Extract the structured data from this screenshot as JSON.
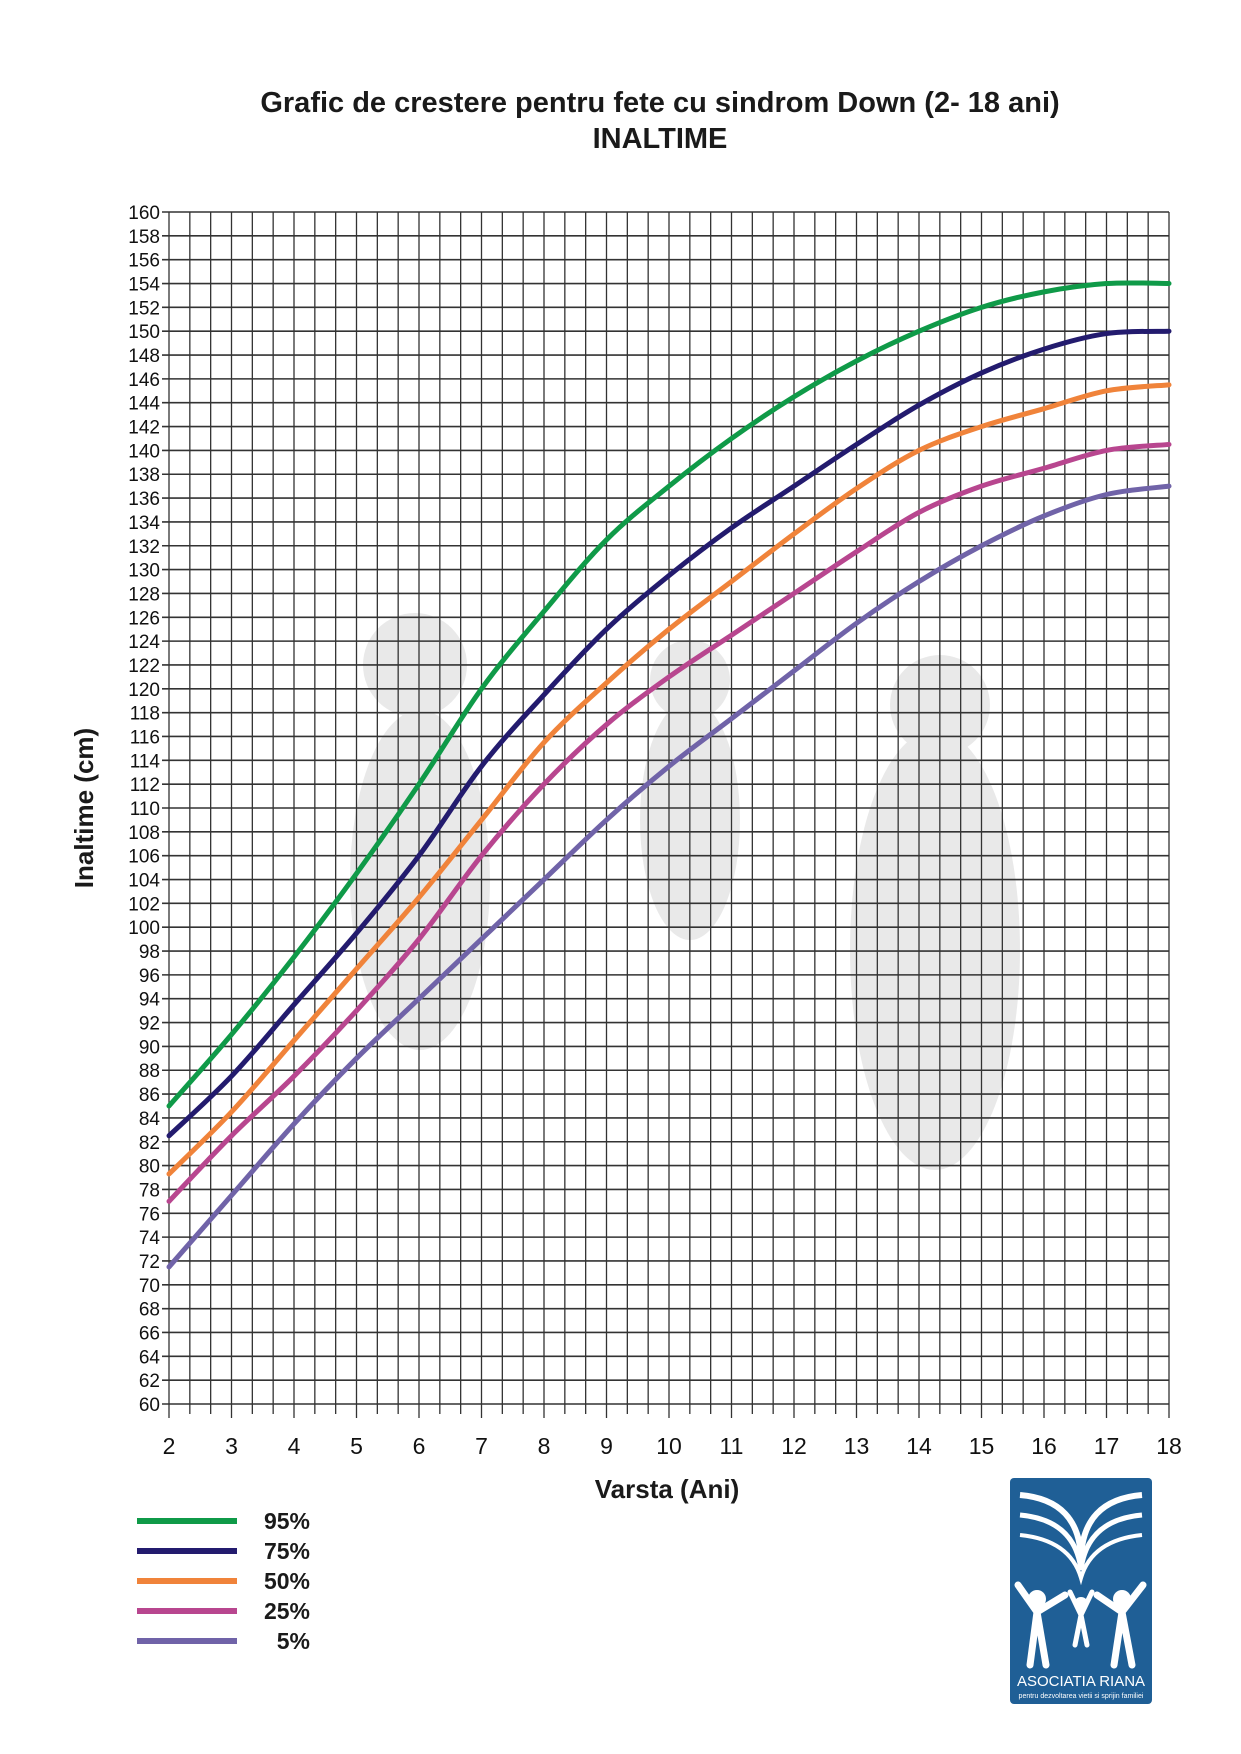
{
  "chart_data": {
    "type": "line",
    "title": "Grafic de crestere pentru fete cu sindrom Down (2- 18 ani)",
    "subtitle": "INALTIME",
    "xlabel": "Varsta (Ani)",
    "ylabel": "Inaltime (cm)",
    "xlim": [
      2,
      18
    ],
    "ylim": [
      60,
      160
    ],
    "grid": true,
    "x_ticks": [
      2,
      3,
      4,
      5,
      6,
      7,
      8,
      9,
      10,
      11,
      12,
      13,
      14,
      15,
      16,
      17,
      18
    ],
    "y_ticks": [
      60,
      62,
      64,
      66,
      68,
      70,
      72,
      74,
      76,
      78,
      80,
      82,
      84,
      86,
      88,
      90,
      92,
      94,
      96,
      98,
      100,
      102,
      104,
      106,
      108,
      110,
      112,
      114,
      116,
      118,
      120,
      122,
      124,
      126,
      128,
      130,
      132,
      134,
      136,
      138,
      140,
      142,
      144,
      146,
      148,
      150,
      152,
      154,
      156,
      158,
      160
    ],
    "x": [
      2,
      3,
      4,
      5,
      6,
      7,
      8,
      9,
      10,
      11,
      12,
      13,
      14,
      15,
      16,
      17,
      18
    ],
    "legend_position": "bottom-left",
    "series": [
      {
        "name": "95%",
        "color": "#0f9a48",
        "values": [
          85,
          91,
          97.5,
          104.5,
          112,
          120,
          126.5,
          132.5,
          137,
          141,
          144.5,
          147.5,
          150,
          152,
          153.3,
          154,
          154
        ]
      },
      {
        "name": "75%",
        "color": "#231b6e",
        "values": [
          82.5,
          87.5,
          93.5,
          99.5,
          106,
          113.5,
          119.5,
          125,
          129.5,
          133.5,
          137,
          140.5,
          143.8,
          146.5,
          148.5,
          149.8,
          150
        ]
      },
      {
        "name": "50%",
        "color": "#f0833a",
        "values": [
          79.3,
          84.5,
          90.5,
          96.5,
          102.5,
          109,
          115.5,
          120.5,
          125,
          129,
          133,
          136.8,
          140,
          142,
          143.5,
          145,
          145.5
        ]
      },
      {
        "name": "25%",
        "color": "#b8468f",
        "values": [
          77,
          82.5,
          87.5,
          93,
          99,
          106,
          112,
          117,
          121,
          124.5,
          128,
          131.5,
          134.8,
          137,
          138.5,
          140,
          140.5
        ]
      },
      {
        "name": "5%",
        "color": "#7063a8",
        "values": [
          71.5,
          77.5,
          83.5,
          89,
          94,
          99,
          104,
          109,
          113.5,
          117.5,
          121.5,
          125.5,
          129,
          132,
          134.5,
          136.3,
          137
        ]
      }
    ]
  },
  "logo": {
    "name": "ASOCIATIA RIANA",
    "tagline": "pentru dezvoltarea vietii si sprijin familiei",
    "color": "#1f5f96"
  }
}
